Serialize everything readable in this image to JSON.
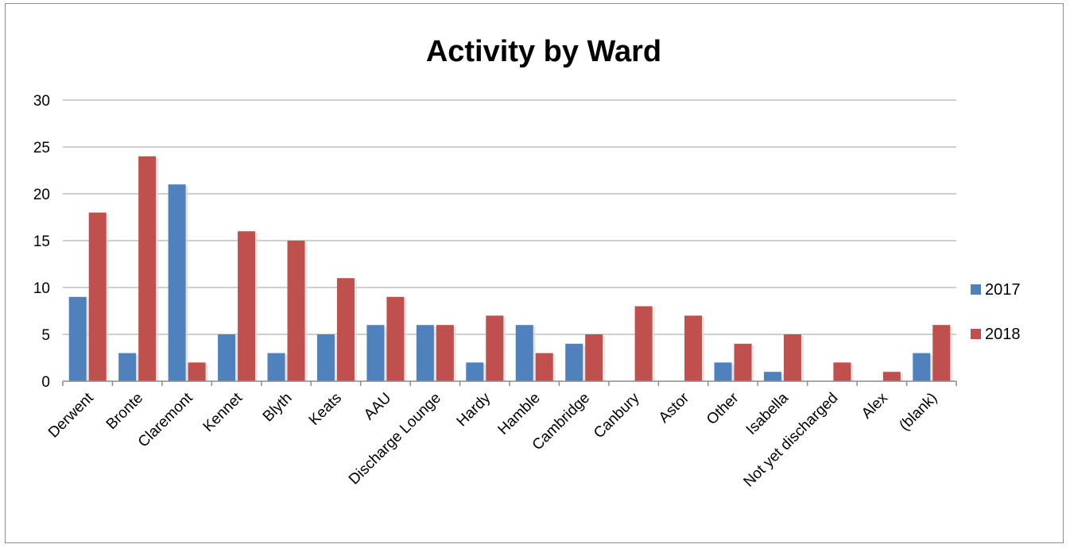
{
  "chart_data": {
    "type": "bar",
    "title": "Activity by Ward",
    "xlabel": "",
    "ylabel": "",
    "ylim": [
      0,
      30
    ],
    "yticks": [
      0,
      5,
      10,
      15,
      20,
      25,
      30
    ],
    "grid": true,
    "legend_position": "right",
    "categories": [
      "Derwent",
      "Bronte",
      "Claremont",
      "Kennet",
      "Blyth",
      "Keats",
      "AAU",
      "Discharge Lounge",
      "Hardy",
      "Hamble",
      "Cambridge",
      "Canbury",
      "Astor",
      "Other",
      "Isabella",
      "Not yet discharged",
      "Alex",
      "(blank)"
    ],
    "series": [
      {
        "name": "2017",
        "color": "#4f81bd",
        "values": [
          9,
          3,
          21,
          5,
          3,
          5,
          6,
          6,
          2,
          6,
          4,
          0,
          0,
          2,
          1,
          0,
          0,
          3
        ]
      },
      {
        "name": "2018",
        "color": "#c0504d",
        "values": [
          18,
          24,
          2,
          16,
          15,
          11,
          9,
          6,
          7,
          3,
          5,
          8,
          7,
          4,
          5,
          2,
          1,
          6
        ]
      }
    ]
  }
}
